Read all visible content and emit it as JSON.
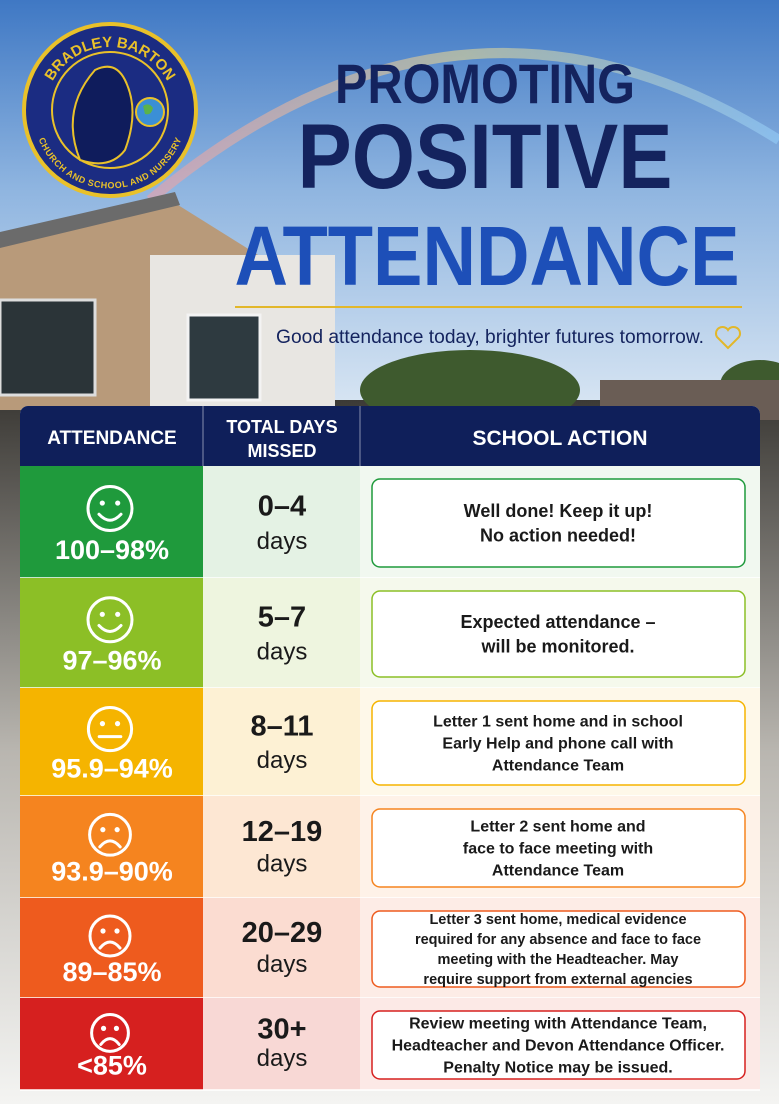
{
  "logo": {
    "top_text": "BRADLEY BARTON",
    "bottom_text": "CHURCH AND SCHOOL AND NURSERY"
  },
  "header": {
    "title_lines": [
      "PROMOTING",
      "POSITIVE",
      "ATTENDANCE"
    ],
    "tagline": "Good attendance today, brighter futures tomorrow."
  },
  "table": {
    "columns": [
      "ATTENDANCE",
      [
        "TOTAL DAYS",
        "MISSED"
      ],
      "SCHOOL ACTION"
    ],
    "rows": [
      {
        "attendance": "100–98%",
        "days": "0–4",
        "days_unit": "days",
        "action": [
          "Well done! Keep it up!",
          "No action needed!"
        ]
      },
      {
        "attendance": "97–96%",
        "days": "5–7",
        "days_unit": "days",
        "action": [
          "Expected attendance –",
          "will be monitored."
        ]
      },
      {
        "attendance": "95.9–94%",
        "days": "8–11",
        "days_unit": "days",
        "action": [
          "Letter 1 sent home and in school",
          "Early Help and phone call with",
          "Attendance Team"
        ]
      },
      {
        "attendance": "93.9–90%",
        "days": "12–19",
        "days_unit": "days",
        "action": [
          "Letter 2 sent home and",
          "face to face meeting with",
          "Attendance Team"
        ]
      },
      {
        "attendance": "89–85%",
        "days": "20–29",
        "days_unit": "days",
        "action": [
          "Letter 3 sent home, medical evidence",
          "required for any absence and face to face",
          "meeting with the Headteacher.   May",
          "require support from external agencies"
        ]
      },
      {
        "attendance": "<85%",
        "days": "30+",
        "days_unit": "days",
        "action": [
          "Review meeting with Attendance Team,",
          "Headteacher and Devon Attendance Officer.",
          "Penalty Notice may be issued."
        ]
      }
    ]
  }
}
